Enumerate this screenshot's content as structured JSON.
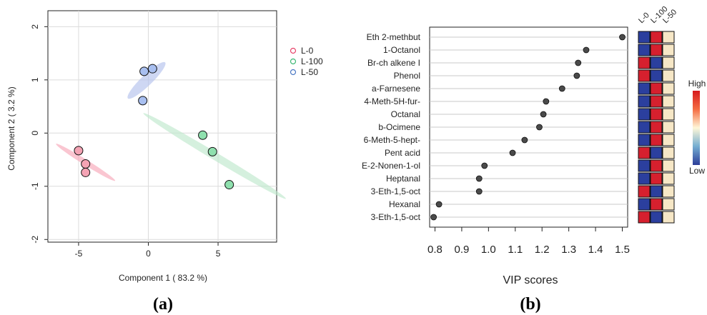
{
  "chart_data": [
    {
      "type": "scatter",
      "panel_label": "(a)",
      "xlabel": "Component 1 ( 83.2 %)",
      "ylabel": "Component 2 ( 3.2 %)",
      "xlim": [
        -7.2,
        9.2
      ],
      "ylim": [
        -2.05,
        2.3
      ],
      "xticks": [
        -5,
        0,
        5
      ],
      "yticks": [
        -2,
        -1,
        0,
        1,
        2
      ],
      "grid": true,
      "legend_position": "right",
      "series": [
        {
          "name": "L-0",
          "color": "#e8436a",
          "fill": "#f4a3b4",
          "ellipse_color": "#f7a8b8",
          "points": [
            [
              -5.0,
              -0.33
            ],
            [
              -4.5,
              -0.58
            ],
            [
              -4.5,
              -0.74
            ]
          ]
        },
        {
          "name": "L-100",
          "color": "#3cb874",
          "fill": "#8fe0ae",
          "ellipse_color": "#bfe8cc",
          "points": [
            [
              3.9,
              -0.04
            ],
            [
              4.6,
              -0.35
            ],
            [
              5.8,
              -0.97
            ]
          ]
        },
        {
          "name": "L-50",
          "color": "#4a78c4",
          "fill": "#a8bff0",
          "ellipse_color": "#b4c2ec",
          "points": [
            [
              -0.3,
              1.16
            ],
            [
              0.3,
              1.21
            ],
            [
              -0.4,
              0.61
            ]
          ]
        }
      ],
      "ellipses": [
        {
          "group": "L-0",
          "cx": -4.5,
          "cy": -0.55,
          "rx": 1.28,
          "ry": 0.1,
          "angle": -32
        },
        {
          "group": "L-100",
          "cx": 4.75,
          "cy": -0.43,
          "rx": 3.05,
          "ry": 0.14,
          "angle": -31
        },
        {
          "group": "L-50",
          "cx": -0.13,
          "cy": 0.99,
          "rx": 0.95,
          "ry": 0.2,
          "angle": 44
        }
      ]
    },
    {
      "type": "dot",
      "panel_label": "(b)",
      "xlabel": "VIP scores",
      "xlim": [
        0.78,
        1.52
      ],
      "xticks": [
        "0.8",
        "0.9",
        "1.0",
        "1.1",
        "1.2",
        "1.3",
        "1.4",
        "1.5"
      ],
      "features": [
        "Eth 2-methbut",
        "1-Octanol",
        "Br-ch alkene I",
        "Phenol",
        "a-Farnesene",
        "4-Meth-5H-fur-",
        "Octanal",
        "b-Ocimene",
        "6-Meth-5-hept-",
        "Pent acid",
        "E-2-Nonen-1-ol",
        "Heptanal",
        "3-Eth-1,5-oct ",
        "Hexanal",
        "3-Eth-1,5-oct"
      ],
      "values": [
        1.5,
        1.365,
        1.335,
        1.33,
        1.275,
        1.215,
        1.205,
        1.19,
        1.135,
        1.09,
        0.985,
        0.965,
        0.965,
        0.815,
        0.795
      ],
      "heatmap": {
        "columns": [
          "L-0",
          "L-100",
          "L-50"
        ],
        "rows": [
          [
            "low",
            "high",
            "mid"
          ],
          [
            "low",
            "high",
            "mid"
          ],
          [
            "high",
            "low",
            "mid"
          ],
          [
            "high",
            "low",
            "mid"
          ],
          [
            "low",
            "high",
            "mid"
          ],
          [
            "low",
            "high",
            "mid"
          ],
          [
            "low",
            "high",
            "mid"
          ],
          [
            "low",
            "high",
            "mid"
          ],
          [
            "low",
            "high",
            "mid"
          ],
          [
            "high",
            "low",
            "mid"
          ],
          [
            "low",
            "high",
            "mid"
          ],
          [
            "low",
            "high",
            "mid"
          ],
          [
            "high",
            "low",
            "mid"
          ],
          [
            "low",
            "high",
            "mid"
          ],
          [
            "high",
            "low",
            "mid"
          ]
        ],
        "colors": {
          "high": "#d6202e",
          "low": "#2b3f9e",
          "mid": "#f6e7c6"
        }
      },
      "colorbar": {
        "high_label": "High",
        "low_label": "Low"
      }
    }
  ]
}
